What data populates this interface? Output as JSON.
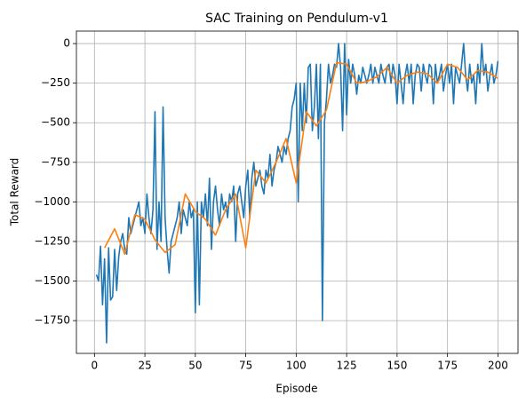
{
  "chart_data": {
    "type": "line",
    "title": "SAC Training on Pendulum-v1",
    "x_label": "Episode",
    "y_label": "Total Reward",
    "xlim": [
      -8.95,
      209.95
    ],
    "ylim": [
      -1957,
      79
    ],
    "xticks": [
      0,
      25,
      50,
      75,
      100,
      125,
      150,
      175,
      200
    ],
    "yticks": [
      {
        "value": -1750,
        "label": "−1750"
      },
      {
        "value": -1500,
        "label": "−1500"
      },
      {
        "value": -1250,
        "label": "−1250"
      },
      {
        "value": -1000,
        "label": "−1000"
      },
      {
        "value": -750,
        "label": "−750"
      },
      {
        "value": -500,
        "label": "−500"
      },
      {
        "value": -250,
        "label": "−250"
      },
      0
    ],
    "grid": true,
    "series": [
      {
        "color": "#1f77b4",
        "x": [
          1,
          2,
          3,
          4,
          5,
          6,
          7,
          8,
          9,
          10,
          11,
          12,
          13,
          14,
          15,
          16,
          17,
          18,
          19,
          20,
          21,
          22,
          23,
          24,
          25,
          26,
          27,
          28,
          29,
          30,
          31,
          32,
          33,
          34,
          35,
          36,
          37,
          38,
          39,
          40,
          41,
          42,
          43,
          44,
          45,
          46,
          47,
          48,
          49,
          50,
          51,
          52,
          53,
          54,
          55,
          56,
          57,
          58,
          59,
          60,
          61,
          62,
          63,
          64,
          65,
          66,
          67,
          68,
          69,
          70,
          71,
          72,
          73,
          74,
          75,
          76,
          77,
          78,
          79,
          80,
          81,
          82,
          83,
          84,
          85,
          86,
          87,
          88,
          89,
          90,
          91,
          92,
          93,
          94,
          95,
          96,
          97,
          98,
          99,
          100,
          101,
          102,
          103,
          104,
          105,
          106,
          107,
          108,
          109,
          110,
          111,
          112,
          113,
          114,
          115,
          116,
          117,
          118,
          119,
          120,
          121,
          122,
          123,
          124,
          125,
          126,
          127,
          128,
          129,
          130,
          131,
          132,
          133,
          134,
          135,
          136,
          137,
          138,
          139,
          140,
          141,
          142,
          143,
          144,
          145,
          146,
          147,
          148,
          149,
          150,
          151,
          152,
          153,
          154,
          155,
          156,
          157,
          158,
          159,
          160,
          161,
          162,
          163,
          164,
          165,
          166,
          167,
          168,
          169,
          170,
          171,
          172,
          173,
          174,
          175,
          176,
          177,
          178,
          179,
          180,
          181,
          182,
          183,
          184,
          185,
          186,
          187,
          188,
          189,
          190,
          191,
          192,
          193,
          194,
          195,
          196,
          197,
          198,
          199,
          200
        ],
        "values": [
          -1460,
          -1500,
          -1280,
          -1650,
          -1360,
          -1890,
          -1290,
          -1620,
          -1600,
          -1300,
          -1560,
          -1350,
          -1250,
          -1200,
          -1300,
          -1330,
          -1100,
          -1200,
          -1150,
          -1100,
          -1050,
          -1000,
          -1150,
          -1100,
          -1200,
          -950,
          -1100,
          -1200,
          -1050,
          -430,
          -1300,
          -1000,
          -1250,
          -400,
          -1100,
          -1300,
          -1450,
          -1250,
          -1200,
          -1150,
          -1100,
          -1000,
          -1200,
          -1050,
          -1100,
          -1150,
          -1000,
          -1100,
          -1050,
          -1700,
          -1000,
          -1650,
          -1000,
          -1100,
          -950,
          -1150,
          -850,
          -1300,
          -1000,
          -900,
          -1050,
          -1150,
          -950,
          -1050,
          -1000,
          -1100,
          -950,
          -1000,
          -900,
          -1250,
          -950,
          -900,
          -1000,
          -1100,
          -900,
          -800,
          -1100,
          -850,
          -750,
          -900,
          -850,
          -800,
          -900,
          -950,
          -800,
          -850,
          -700,
          -900,
          -800,
          -750,
          -650,
          -700,
          -750,
          -650,
          -700,
          -600,
          -550,
          -400,
          -350,
          -250,
          -1000,
          -250,
          -550,
          -250,
          -500,
          -150,
          -130,
          -550,
          -400,
          -130,
          -600,
          -130,
          -1750,
          -500,
          -350,
          -130,
          -250,
          -200,
          -130,
          -150,
          0,
          -150,
          -550,
          0,
          -450,
          -100,
          -250,
          -130,
          -200,
          -320,
          -200,
          -250,
          -150,
          -200,
          -250,
          -200,
          -130,
          -250,
          -150,
          -200,
          -250,
          -130,
          -200,
          -250,
          -150,
          -130,
          -250,
          -130,
          -200,
          -380,
          -130,
          -250,
          -380,
          -200,
          -130,
          -250,
          -130,
          -380,
          -200,
          -130,
          -150,
          -300,
          -130,
          -200,
          -250,
          -130,
          -150,
          -380,
          -130,
          -250,
          -200,
          -130,
          -300,
          -200,
          -130,
          -250,
          -130,
          -380,
          -150,
          -200,
          -250,
          -130,
          0,
          -200,
          -300,
          -130,
          -250,
          -200,
          -380,
          -130,
          -250,
          0,
          -200,
          -130,
          -300,
          -200,
          -130,
          -250,
          -200,
          -110
        ]
      },
      {
        "color": "#ff7f0e",
        "x": [
          5,
          10,
          15,
          20,
          25,
          30,
          35,
          40,
          45,
          50,
          55,
          60,
          65,
          70,
          75,
          80,
          85,
          90,
          95,
          100,
          105,
          110,
          115,
          120,
          125,
          130,
          135,
          140,
          145,
          150,
          155,
          160,
          165,
          170,
          175,
          180,
          185,
          190,
          195,
          200
        ],
        "values": [
          -1290,
          -1170,
          -1330,
          -1080,
          -1110,
          -1240,
          -1320,
          -1270,
          -950,
          -1060,
          -1110,
          -1210,
          -1050,
          -950,
          -1290,
          -800,
          -880,
          -750,
          -600,
          -880,
          -430,
          -520,
          -420,
          -120,
          -130,
          -250,
          -240,
          -210,
          -150,
          -250,
          -200,
          -180,
          -190,
          -250,
          -130,
          -150,
          -230,
          -170,
          -180,
          -220
        ]
      }
    ]
  }
}
